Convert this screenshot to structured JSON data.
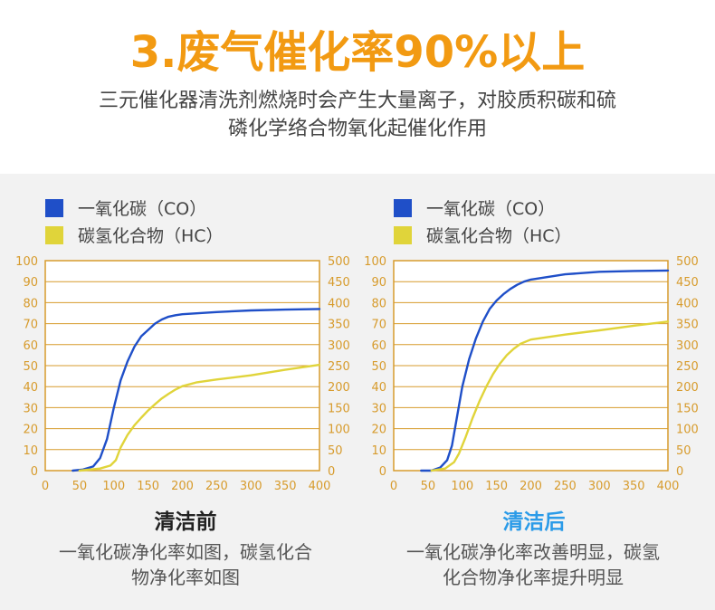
{
  "header": {
    "title": "3.废气催化率90%以上",
    "subtitle_line1": "三元催化器清洗剂燃烧时会产生大量离子，对胶质积碳和硫",
    "subtitle_line2": "磷化学络合物氧化起催化作用"
  },
  "colors": {
    "title": "#f29a12",
    "co_series": "#1f4fc8",
    "hc_series": "#e0d43a",
    "frame": "#d79b2c",
    "after_caption": "#2b9be8"
  },
  "captions": {
    "before_title": "清洁前",
    "before_text_line1": "一氧化碳净化率如图，碳氢化合",
    "before_text_line2": "物净化率如图",
    "after_title": "清洁后",
    "after_text_line1": "一氧化碳净化率改善明显，碳氢",
    "after_text_line2": "化合物净化率提升明显"
  },
  "chart_data": [
    {
      "type": "line",
      "panel": "before",
      "legend": [
        "一氧化碳（CO）",
        "碳氢化合物（HC）"
      ],
      "x_ticks": [
        "0",
        "50",
        "100",
        "150",
        "200",
        "250",
        "300",
        "350",
        "400"
      ],
      "y_left_ticks": [
        "0",
        "10",
        "20",
        "30",
        "40",
        "50",
        "60",
        "70",
        "80",
        "90",
        "100"
      ],
      "y_right_ticks": [
        "0",
        "50",
        "100",
        "150",
        "200",
        "250",
        "300",
        "350",
        "400",
        "450",
        "500"
      ],
      "xlim": [
        0,
        400
      ],
      "ylim_left": [
        0,
        100
      ],
      "ylim_right": [
        0,
        500
      ],
      "grid": "horizontal",
      "legend_position": "top-left",
      "series": [
        {
          "name": "一氧化碳（CO）",
          "axis": "left",
          "points": [
            [
              40,
              0
            ],
            [
              55,
              0.5
            ],
            [
              70,
              2
            ],
            [
              80,
              6
            ],
            [
              90,
              15
            ],
            [
              100,
              30
            ],
            [
              110,
              43
            ],
            [
              120,
              52
            ],
            [
              130,
              59
            ],
            [
              140,
              64
            ],
            [
              150,
              67
            ],
            [
              160,
              70
            ],
            [
              170,
              72
            ],
            [
              180,
              73.3
            ],
            [
              190,
              74
            ],
            [
              200,
              74.5
            ],
            [
              250,
              75.5
            ],
            [
              300,
              76.3
            ],
            [
              350,
              76.7
            ],
            [
              400,
              77
            ]
          ]
        },
        {
          "name": "碳氢化合物（HC）",
          "axis": "right",
          "points": [
            [
              50,
              0
            ],
            [
              80,
              5
            ],
            [
              95,
              12
            ],
            [
              103,
              25
            ],
            [
              110,
              55
            ],
            [
              120,
              85
            ],
            [
              130,
              108
            ],
            [
              140,
              126
            ],
            [
              150,
              143
            ],
            [
              160,
              158
            ],
            [
              170,
              172
            ],
            [
              180,
              183
            ],
            [
              190,
              193
            ],
            [
              200,
              201
            ],
            [
              220,
              210
            ],
            [
              250,
              217
            ],
            [
              300,
              227
            ],
            [
              350,
              240
            ],
            [
              400,
              252
            ]
          ]
        }
      ]
    },
    {
      "type": "line",
      "panel": "after",
      "legend": [
        "一氧化碳（CO）",
        "碳氢化合物（HC）"
      ],
      "x_ticks": [
        "0",
        "50",
        "100",
        "150",
        "200",
        "250",
        "300",
        "350",
        "400"
      ],
      "y_left_ticks": [
        "0",
        "10",
        "20",
        "30",
        "40",
        "50",
        "60",
        "70",
        "80",
        "90",
        "100"
      ],
      "y_right_ticks": [
        "0",
        "50",
        "100",
        "150",
        "200",
        "250",
        "300",
        "350",
        "400",
        "450",
        "500"
      ],
      "xlim": [
        0,
        400
      ],
      "ylim_left": [
        0,
        100
      ],
      "ylim_right": [
        0,
        500
      ],
      "grid": "horizontal",
      "legend_position": "top-left",
      "series": [
        {
          "name": "一氧化碳（CO）",
          "axis": "left",
          "points": [
            [
              40,
              0
            ],
            [
              55,
              0
            ],
            [
              68,
              1.5
            ],
            [
              78,
              5
            ],
            [
              85,
              12
            ],
            [
              92,
              25
            ],
            [
              100,
              40
            ],
            [
              110,
              53
            ],
            [
              120,
              63
            ],
            [
              130,
              71
            ],
            [
              140,
              77
            ],
            [
              150,
              81
            ],
            [
              160,
              84
            ],
            [
              170,
              86.5
            ],
            [
              180,
              88.5
            ],
            [
              190,
              90
            ],
            [
              200,
              91
            ],
            [
              250,
              93.5
            ],
            [
              300,
              94.7
            ],
            [
              350,
              95.1
            ],
            [
              400,
              95.3
            ]
          ]
        },
        {
          "name": "碳氢化合物（HC）",
          "axis": "right",
          "points": [
            [
              55,
              0
            ],
            [
              75,
              5
            ],
            [
              88,
              20
            ],
            [
              95,
              40
            ],
            [
              105,
              80
            ],
            [
              115,
              125
            ],
            [
              125,
              165
            ],
            [
              135,
              200
            ],
            [
              145,
              230
            ],
            [
              155,
              255
            ],
            [
              165,
              275
            ],
            [
              175,
              290
            ],
            [
              185,
              302
            ],
            [
              200,
              312
            ],
            [
              250,
              324
            ],
            [
              300,
              334
            ],
            [
              350,
              345
            ],
            [
              400,
              355
            ]
          ]
        }
      ]
    }
  ]
}
